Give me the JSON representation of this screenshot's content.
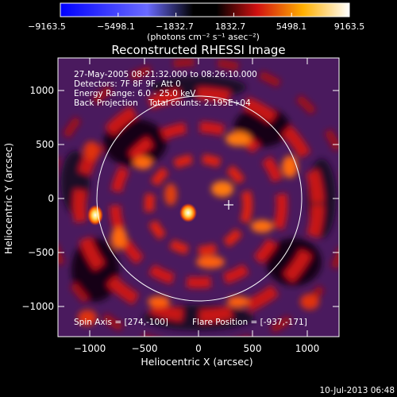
{
  "colorbar": {
    "ticks": [
      "−9163.5",
      "−5498.1",
      "−1832.7",
      "1832.7",
      "5498.1",
      "9163.5"
    ],
    "unit_label": "(photons cm⁻² s⁻¹ asec⁻²)"
  },
  "plot": {
    "title": "Reconstructed RHESSI Image",
    "info_lines": [
      "27-May-2005 08:21:32.000 to 08:26:10.000",
      "Detectors: 7F 8F 9F, Att 0",
      "Energy Range: 6.0 - 25.0 keV",
      "Back Projection    Total counts: 2.195E+04"
    ],
    "footer_left": "Spin Axis = [274,-100]",
    "footer_right": "Flare Position = [-937,-171]",
    "xlabel": "Heliocentric X (arcsec)",
    "ylabel": "Heliocentric Y (arcsec)",
    "xticks": [
      "−1000",
      "−500",
      "0",
      "500",
      "1000"
    ],
    "yticks": [
      "1000",
      "500",
      "0",
      "−500",
      "−1000"
    ]
  },
  "timestamp": "10-Jul-2013 06:48",
  "colors": {
    "background": "#000000",
    "foreground": "#ffffff",
    "ring_dark": "#4a1a5e",
    "ring_red": "#d01818",
    "ring_orange": "#ff7a10",
    "blob_yellow": "#fff080"
  }
}
